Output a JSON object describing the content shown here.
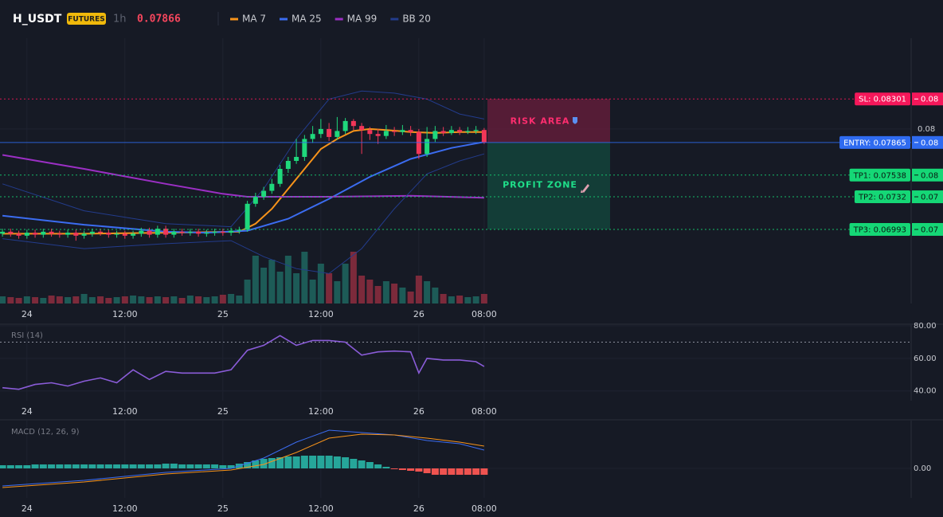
{
  "header": {
    "symbol": "H_USDT",
    "badge": "FUTURES",
    "interval": "1h",
    "price": "0.07866"
  },
  "chart_data": [
    {
      "type": "candlestick",
      "x": [
        0,
        1,
        2,
        3,
        4,
        5,
        6,
        7,
        8,
        9,
        10,
        11,
        12,
        13,
        14,
        15,
        16,
        17,
        18,
        19,
        20,
        21,
        22,
        23,
        24,
        25,
        26,
        27,
        28,
        29,
        30,
        31,
        32,
        33,
        34,
        35,
        36,
        37,
        38,
        39,
        40,
        41,
        42,
        43,
        44,
        45,
        46,
        47,
        48,
        49,
        50,
        51,
        52,
        53,
        54,
        55,
        56,
        57,
        58,
        59
      ],
      "open": [
        0.0695,
        0.0697,
        0.0695,
        0.0693,
        0.0696,
        0.0694,
        0.0697,
        0.0695,
        0.0694,
        0.0696,
        0.0693,
        0.0695,
        0.0697,
        0.0696,
        0.0694,
        0.0695,
        0.0693,
        0.0695,
        0.0698,
        0.0694,
        0.07,
        0.0694,
        0.0697,
        0.0696,
        0.0697,
        0.0695,
        0.0696,
        0.0697,
        0.0696,
        0.0698,
        0.0699,
        0.0725,
        0.0732,
        0.0738,
        0.0745,
        0.076,
        0.0768,
        0.0772,
        0.079,
        0.0795,
        0.08,
        0.0792,
        0.0798,
        0.0808,
        0.0803,
        0.0799,
        0.0795,
        0.0793,
        0.0798,
        0.0797,
        0.0799,
        0.0797,
        0.0775,
        0.079,
        0.0798,
        0.0796,
        0.0799,
        0.0797,
        0.0798,
        0.0799
      ],
      "high": [
        0.07,
        0.07,
        0.0698,
        0.0699,
        0.0699,
        0.07,
        0.07,
        0.0698,
        0.0699,
        0.0699,
        0.0698,
        0.07,
        0.07,
        0.0699,
        0.0698,
        0.0698,
        0.0698,
        0.0701,
        0.0701,
        0.0703,
        0.0703,
        0.07,
        0.07,
        0.07,
        0.07,
        0.0699,
        0.07,
        0.07,
        0.0701,
        0.0702,
        0.0728,
        0.0736,
        0.0742,
        0.075,
        0.0764,
        0.0772,
        0.079,
        0.0794,
        0.0803,
        0.081,
        0.0806,
        0.0812,
        0.0811,
        0.081,
        0.0806,
        0.0802,
        0.08,
        0.0804,
        0.0802,
        0.0804,
        0.0803,
        0.08,
        0.0802,
        0.0803,
        0.0802,
        0.0803,
        0.0802,
        0.0802,
        0.0803,
        0.0801
      ],
      "low": [
        0.0692,
        0.0692,
        0.069,
        0.069,
        0.0691,
        0.0691,
        0.0692,
        0.0691,
        0.0691,
        0.0688,
        0.069,
        0.0692,
        0.0693,
        0.0691,
        0.0691,
        0.069,
        0.069,
        0.0692,
        0.0691,
        0.0691,
        0.0691,
        0.0691,
        0.0693,
        0.0693,
        0.0692,
        0.0692,
        0.0693,
        0.0693,
        0.0693,
        0.0695,
        0.0697,
        0.0722,
        0.0729,
        0.0735,
        0.0742,
        0.0756,
        0.0765,
        0.0768,
        0.0786,
        0.0791,
        0.0788,
        0.0789,
        0.0795,
        0.0799,
        0.0775,
        0.0789,
        0.0785,
        0.079,
        0.0793,
        0.0794,
        0.0793,
        0.077,
        0.0772,
        0.0787,
        0.0793,
        0.0794,
        0.0794,
        0.0795,
        0.0795,
        0.0785
      ],
      "close": [
        0.0697,
        0.0695,
        0.0693,
        0.0696,
        0.0694,
        0.0697,
        0.0695,
        0.0694,
        0.0696,
        0.0693,
        0.0695,
        0.0697,
        0.0696,
        0.0694,
        0.0695,
        0.0693,
        0.0695,
        0.0698,
        0.0694,
        0.07,
        0.0694,
        0.0697,
        0.0696,
        0.0697,
        0.0695,
        0.0696,
        0.0697,
        0.0696,
        0.0698,
        0.0699,
        0.0725,
        0.0732,
        0.0738,
        0.0745,
        0.076,
        0.0768,
        0.0772,
        0.079,
        0.0795,
        0.08,
        0.0792,
        0.0798,
        0.0808,
        0.0803,
        0.0799,
        0.0795,
        0.0793,
        0.0798,
        0.0797,
        0.0799,
        0.0797,
        0.0775,
        0.079,
        0.0798,
        0.0796,
        0.0799,
        0.0797,
        0.0798,
        0.0799,
        0.07866
      ],
      "volume": [
        9,
        8,
        7,
        9,
        8,
        7,
        10,
        9,
        8,
        9,
        12,
        8,
        9,
        7,
        8,
        9,
        10,
        9,
        8,
        9,
        8,
        9,
        7,
        10,
        9,
        8,
        9,
        11,
        12,
        10,
        30,
        60,
        45,
        55,
        40,
        60,
        38,
        65,
        30,
        50,
        38,
        28,
        50,
        65,
        35,
        30,
        22,
        28,
        25,
        20,
        15,
        35,
        28,
        20,
        12,
        9,
        10,
        8,
        9,
        12
      ],
      "volume_lim": [
        0,
        100
      ],
      "up_color": "#1fd87c",
      "down_color": "#f23658",
      "volume_up_color": "#1d5b57",
      "volume_down_color": "#7c2a3b",
      "xlim": [
        -0.3,
        111.3
      ],
      "xticks": [
        {
          "value": 3,
          "label": "24"
        },
        {
          "value": 15,
          "label": "12:00"
        },
        {
          "value": 27,
          "label": "25"
        },
        {
          "value": 39,
          "label": "12:00"
        },
        {
          "value": 51,
          "label": "26"
        },
        {
          "value": 59,
          "label": "08:00"
        }
      ],
      "ylim": [
        0.0625,
        0.0891
      ],
      "yticks": [
        0.08
      ],
      "grid": true,
      "overlays": [
        {
          "name": "MA 7",
          "color": "#f7931a",
          "x": [
            0,
            10,
            20,
            29,
            31,
            33,
            35,
            37,
            39,
            41,
            43,
            45,
            47,
            50,
            53,
            56,
            59
          ],
          "values": [
            0.0695,
            0.0695,
            0.0696,
            0.0697,
            0.0705,
            0.072,
            0.074,
            0.076,
            0.078,
            0.079,
            0.0798,
            0.08,
            0.0799,
            0.0797,
            0.0796,
            0.0797,
            0.0797
          ]
        },
        {
          "name": "MA 25",
          "color": "#3b6cf0",
          "x": [
            0,
            10,
            20,
            25,
            30,
            35,
            40,
            45,
            50,
            55,
            59
          ],
          "values": [
            0.0713,
            0.0704,
            0.0697,
            0.0696,
            0.0698,
            0.071,
            0.073,
            0.0752,
            0.077,
            0.0781,
            0.0787
          ]
        },
        {
          "name": "MA 99",
          "color": "#9b2fc4",
          "x": [
            0,
            10,
            20,
            27,
            30,
            40,
            50,
            59
          ],
          "values": [
            0.0774,
            0.076,
            0.0745,
            0.0735,
            0.0732,
            0.0732,
            0.0733,
            0.0731
          ]
        },
        {
          "name": "BB 20",
          "color": "#233c8c",
          "x": [
            0,
            10,
            20,
            28,
            32,
            36,
            40,
            44,
            48,
            52,
            56,
            59
          ],
          "values": [
            0.0745,
            0.0718,
            0.0705,
            0.0702,
            0.074,
            0.079,
            0.083,
            0.0838,
            0.0836,
            0.083,
            0.0815,
            0.081
          ],
          "lower": [
            0.069,
            0.068,
            0.0685,
            0.0688,
            0.0672,
            0.066,
            0.0655,
            0.068,
            0.072,
            0.0755,
            0.0768,
            0.0775
          ]
        }
      ],
      "levels": [
        {
          "label": "SL: 0.08301",
          "value": 0.08301,
          "axis_label": "0.08",
          "color": "#f5175a",
          "dashed": true
        },
        {
          "label": "ENTRY: 0.07865",
          "value": 0.07865,
          "axis_label": "0.08",
          "color": "#2f6bf0",
          "dashed": false
        },
        {
          "label": "TP1: 0.07538",
          "value": 0.07538,
          "axis_label": "0.08",
          "color": "#15d776",
          "dashed": true
        },
        {
          "label": "TP2: 0.0732",
          "value": 0.0732,
          "axis_label": "0.07",
          "color": "#15d776",
          "dashed": true
        },
        {
          "label": "TP3: 0.06993",
          "value": 0.06993,
          "axis_label": "0.07",
          "color": "#15d776",
          "dashed": true
        }
      ],
      "zones": [
        {
          "label": "RISK AREA",
          "from": 0.07865,
          "to": 0.08301,
          "color": "#6b1d3c",
          "text_color": "#ff2d6f"
        },
        {
          "label": "PROFIT ZONE",
          "from": 0.06993,
          "to": 0.07865,
          "color": "#134a3d",
          "text_color": "#1fe08a"
        }
      ]
    },
    {
      "type": "line",
      "title": "RSI (14)",
      "color": "#8a5cd8",
      "x": [
        0,
        2,
        4,
        6,
        8,
        10,
        12,
        14,
        16,
        18,
        20,
        22,
        24,
        26,
        28,
        30,
        32,
        34,
        36,
        38,
        40,
        42,
        44,
        46,
        48,
        50,
        51,
        52,
        54,
        56,
        58,
        59
      ],
      "values": [
        42,
        41,
        44,
        45,
        43,
        46,
        48,
        45,
        53,
        47,
        52,
        51,
        51,
        51,
        53,
        65,
        68,
        74,
        68,
        71,
        71,
        70,
        62,
        64,
        64.5,
        64,
        51,
        60,
        59,
        59,
        58,
        55
      ],
      "level": 70,
      "xlim": [
        -0.3,
        111.3
      ],
      "xticks": [
        {
          "value": 3,
          "label": "24"
        },
        {
          "value": 15,
          "label": "12:00"
        },
        {
          "value": 27,
          "label": "25"
        },
        {
          "value": 39,
          "label": "12:00"
        },
        {
          "value": 51,
          "label": "26"
        },
        {
          "value": 59,
          "label": "08:00"
        }
      ],
      "ylim": [
        34,
        80.5
      ],
      "yticks": [
        {
          "value": 40,
          "label": "40.00"
        },
        {
          "value": 60,
          "label": "60.00"
        },
        {
          "value": 80,
          "label": "80.00"
        }
      ]
    },
    {
      "type": "macd",
      "title": "MACD (12, 26, 9)",
      "series": [
        {
          "color": "#3b6cf0",
          "x": [
            0,
            10,
            20,
            28,
            32,
            36,
            40,
            44,
            48,
            52,
            56,
            59
          ],
          "values": [
            -0.00022,
            -0.00015,
            -5e-05,
            0,
            0.00013,
            0.00033,
            0.00048,
            0.00045,
            0.00042,
            0.00035,
            0.00031,
            0.00023
          ]
        },
        {
          "color": "#f7931a",
          "x": [
            0,
            10,
            20,
            28,
            32,
            36,
            40,
            44,
            48,
            52,
            56,
            59
          ],
          "values": [
            -0.00024,
            -0.00017,
            -7e-05,
            -2e-05,
            5e-05,
            0.0002,
            0.00038,
            0.00043,
            0.00042,
            0.00038,
            0.00033,
            0.00028
          ]
        }
      ],
      "histogram": {
        "x": [
          0,
          1,
          2,
          3,
          4,
          5,
          6,
          7,
          8,
          9,
          10,
          11,
          12,
          13,
          14,
          15,
          16,
          17,
          18,
          19,
          20,
          21,
          22,
          23,
          24,
          25,
          26,
          27,
          28,
          29,
          30,
          31,
          32,
          33,
          34,
          35,
          36,
          37,
          38,
          39,
          40,
          41,
          42,
          43,
          44,
          45,
          46,
          47,
          48,
          49,
          50,
          51,
          52,
          53,
          54,
          55,
          56,
          57,
          58,
          59
        ],
        "values": [
          4e-05,
          4e-05,
          4e-05,
          4e-05,
          5e-05,
          5e-05,
          5e-05,
          5e-05,
          5e-05,
          5e-05,
          5e-05,
          5e-05,
          5e-05,
          5e-05,
          5e-05,
          5e-05,
          5e-05,
          5e-05,
          5e-05,
          5e-05,
          6e-05,
          6e-05,
          5e-05,
          5e-05,
          5e-05,
          5e-05,
          5e-05,
          4e-05,
          4e-05,
          6e-05,
          8e-05,
          0.0001,
          0.00012,
          0.00013,
          0.00014,
          0.00015,
          0.00015,
          0.00016,
          0.00016,
          0.00016,
          0.00016,
          0.00015,
          0.00014,
          0.00012,
          0.0001,
          8e-05,
          5e-05,
          2e-05,
          -1e-05,
          -2e-05,
          -3e-05,
          -4e-05,
          -6e-05,
          -8e-05,
          -8e-05,
          -8e-05,
          -8e-05,
          -8e-05,
          -8e-05,
          -8e-05
        ],
        "up_color": "#26a69a",
        "down_color": "#ef5350"
      },
      "xlim": [
        -0.3,
        111.3
      ],
      "xticks": [
        {
          "value": 3,
          "label": "24"
        },
        {
          "value": 15,
          "label": "12:00"
        },
        {
          "value": 27,
          "label": "25"
        },
        {
          "value": 39,
          "label": "12:00"
        },
        {
          "value": 51,
          "label": "26"
        },
        {
          "value": 59,
          "label": "08:00"
        }
      ],
      "ylim": [
        -0.00037,
        0.0006
      ],
      "yticks": [
        {
          "value": 0,
          "label": "0.00"
        }
      ]
    }
  ]
}
